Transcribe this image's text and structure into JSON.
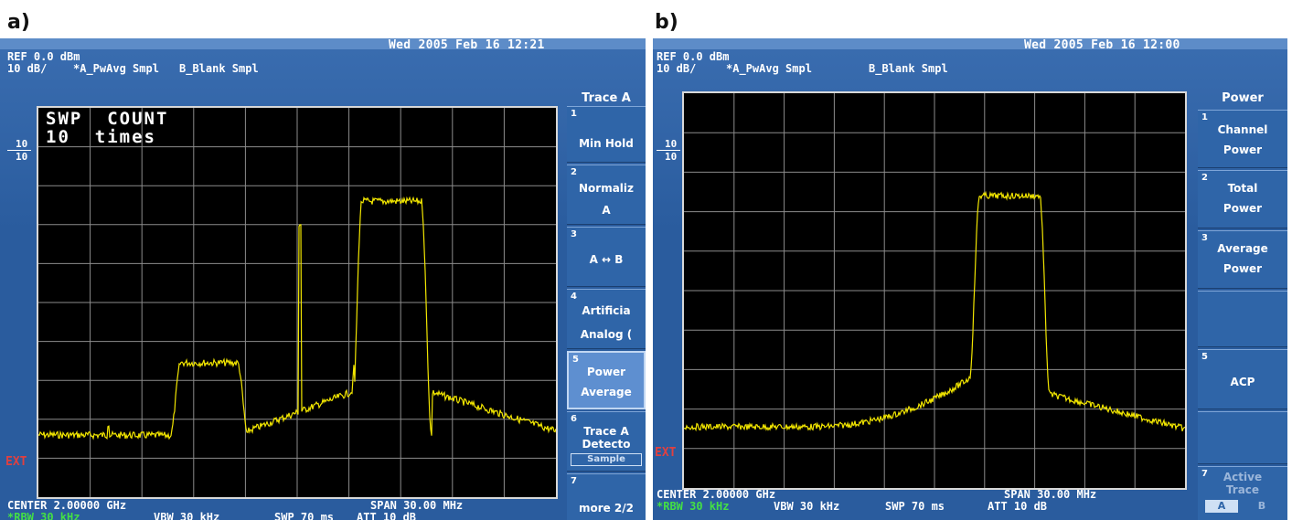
{
  "panels": {
    "a": {
      "label": "a)",
      "datetime": "Wed 2005 Feb 16 12:21",
      "ref": "REF 0.0 dBm",
      "scale": "10 dB/",
      "trace_a": "*A_PwAvg Smpl",
      "trace_b": "B_Blank Smpl",
      "scale_left_top": "10",
      "scale_left_bottom": "10",
      "ext": "EXT",
      "swp_count_line1": "SWP  COUNT",
      "swp_count_line2": "10  times",
      "center": "CENTER 2.00000 GHz",
      "span": "SPAN 30.00 MHz",
      "rbw": "*RBW 30 kHz",
      "vbw": "VBW 30 kHz",
      "swp": "SWP 70 ms",
      "att": "ATT 10 dB",
      "menu_title": "Trace A",
      "softkeys": [
        {
          "num": "1",
          "line1": "Min Hold",
          "line2": ""
        },
        {
          "num": "2",
          "line1": "Normaliz",
          "line2": "A"
        },
        {
          "num": "3",
          "line1": "A ↔ B",
          "line2": ""
        },
        {
          "num": "4",
          "line1": "Artificia",
          "line2": "Analog (",
          "active": false
        },
        {
          "num": "5",
          "line1": "Power",
          "line2": "Average",
          "active": true
        },
        {
          "num": "6",
          "line1": "Trace A",
          "line2": "Detecto",
          "sub": "Sample"
        },
        {
          "num": "7",
          "line1": "more 2/2",
          "line2": ""
        }
      ],
      "trace_color": "#f2e600"
    },
    "b": {
      "label": "b)",
      "datetime": "Wed 2005 Feb 16 12:00",
      "ref": "REF 0.0 dBm",
      "scale": "10 dB/",
      "trace_a": "*A_PwAvg Smpl",
      "trace_b": "B_Blank Smpl",
      "scale_left_top": "10",
      "scale_left_bottom": "10",
      "ext": "EXT",
      "center": "CENTER 2.00000 GHz",
      "span": "SPAN 30.00 MHz",
      "rbw": "*RBW 30 kHz",
      "vbw": "VBW 30 kHz",
      "swp": "SWP 70 ms",
      "att": "ATT 10 dB",
      "menu_title": "Power",
      "softkeys": [
        {
          "num": "1",
          "line1": "Channel",
          "line2": "Power"
        },
        {
          "num": "2",
          "line1": "Total",
          "line2": "Power"
        },
        {
          "num": "3",
          "line1": "Average",
          "line2": "Power"
        },
        {
          "num": "",
          "line1": "",
          "line2": ""
        },
        {
          "num": "5",
          "line1": "ACP",
          "line2": ""
        },
        {
          "num": "",
          "line1": "",
          "line2": ""
        },
        {
          "num": "7",
          "line1": "Active",
          "line2": "Trace",
          "toggle_a": "A",
          "toggle_b": "B"
        }
      ],
      "trace_color": "#f2e600"
    }
  },
  "colors": {
    "screen_bg": "#2a5c9e",
    "plot_bg": "#000000",
    "grid": "#8c8c8c",
    "trace": "#f2e600",
    "ext_text": "#e04040",
    "rbw_text": "#44e044"
  }
}
